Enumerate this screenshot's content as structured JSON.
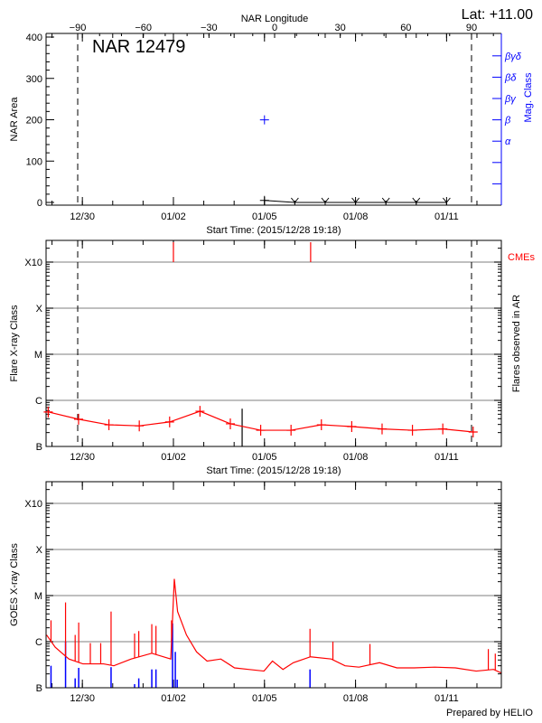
{
  "footer": "Prepared by HELIO",
  "colors": {
    "flare": "#ff0000",
    "mag_class": "#0000ff",
    "grid": "#999999",
    "goes_short": "#0000ff",
    "goes_long": "#ff0000",
    "axis": "#000000"
  },
  "chart_data": [
    {
      "type": "line",
      "panel": "nar",
      "title": "NAR 12479",
      "corner_text": "Lat: +11.00",
      "top_axis_label": "NAR Longitude",
      "top_ticks": [
        -90,
        -60,
        -30,
        0,
        30,
        60,
        90
      ],
      "top_ticks_labels": [
        "−90",
        "−60",
        "−30",
        "0",
        "30",
        "60",
        "90"
      ],
      "longitude_range": [
        -90,
        90
      ],
      "xlabel": "Start Time: (2015/12/28 19:18)",
      "xlim": [
        "2015/12/28 19:18",
        "2016/01/12 19:18"
      ],
      "x_tick_labels": [
        {
          "date": "2015/12/30 00:00",
          "label": "12/30"
        },
        {
          "date": "2016/01/02 00:00",
          "label": "01/02"
        },
        {
          "date": "2016/01/05 00:00",
          "label": "01/05"
        },
        {
          "date": "2016/01/08 00:00",
          "label": "01/08"
        },
        {
          "date": "2016/01/11 00:00",
          "label": "01/11"
        }
      ],
      "ylabel": "NAR Area",
      "ylim": [
        0,
        400
      ],
      "y_ticks": [
        0,
        100,
        200,
        300,
        400
      ],
      "y_ticks_labels": [
        "0",
        "100",
        "200",
        "300",
        "400"
      ],
      "y2label": "Mag. Class",
      "y2_classes": [
        "α",
        "β",
        "βγ",
        "βδ",
        "βγδ"
      ],
      "area_series": [
        {
          "t": "2016/01/05 00:00",
          "area": 5
        },
        {
          "t": "2016/01/06 00:00",
          "area": 0
        },
        {
          "t": "2016/01/07 00:00",
          "area": 0
        },
        {
          "t": "2016/01/08 00:00",
          "area": 0
        },
        {
          "t": "2016/01/09 00:00",
          "area": 0
        },
        {
          "t": "2016/01/10 00:00",
          "area": 0
        },
        {
          "t": "2016/01/11 00:00",
          "area": 0
        }
      ],
      "mag_class_series": [
        {
          "t": "2016/01/05 00:00",
          "class": "β"
        }
      ],
      "limb_markers_longitude": [
        -90,
        90
      ]
    },
    {
      "type": "line",
      "panel": "flares",
      "xlabel": "Start Time: (2015/12/28 19:18)",
      "ylabel": "Flare X-ray Class",
      "y2label": "Flares observed in AR",
      "cme_label": "CMEs",
      "y_scale": "log",
      "ylim": [
        1e-07,
        0.003
      ],
      "y_ticks": [
        1e-07,
        1e-06,
        1e-05,
        0.0001,
        0.001
      ],
      "y_ticks_labels": [
        "B",
        "C",
        "M",
        "X",
        "X10"
      ],
      "grid": true,
      "series": [
        {
          "t": "2015/12/28 21:00",
          "flux": 5.6e-07
        },
        {
          "t": "2015/12/29 21:00",
          "flux": 3.9e-07
        },
        {
          "t": "2015/12/30 21:00",
          "flux": 2.95e-07
        },
        {
          "t": "2015/12/31 21:00",
          "flux": 2.8e-07
        },
        {
          "t": "2016/01/01 21:00",
          "flux": 3.4e-07
        },
        {
          "t": "2016/01/02 21:00",
          "flux": 5.8e-07
        },
        {
          "t": "2016/01/03 21:00",
          "flux": 3.1e-07
        },
        {
          "t": "2016/01/04 21:00",
          "flux": 2.25e-07
        },
        {
          "t": "2016/01/05 21:00",
          "flux": 2.25e-07
        },
        {
          "t": "2016/01/06 21:00",
          "flux": 2.95e-07
        },
        {
          "t": "2016/01/07 21:00",
          "flux": 2.7e-07
        },
        {
          "t": "2016/01/08 21:00",
          "flux": 2.4e-07
        },
        {
          "t": "2016/01/09 21:00",
          "flux": 2.25e-07
        },
        {
          "t": "2016/01/10 21:00",
          "flux": 2.4e-07
        },
        {
          "t": "2016/01/11 21:00",
          "flux": 2.06e-07
        }
      ],
      "flare_events": [
        {
          "t": "2016/01/04 06:20",
          "flux": 6.6e-07
        }
      ],
      "cme_times": [
        "2016/01/02 00:00",
        "2016/01/06 12:30"
      ]
    },
    {
      "type": "line",
      "panel": "goes",
      "ylabel": "GOES X-ray Class",
      "y_scale": "log",
      "ylim": [
        1e-07,
        0.003
      ],
      "y_ticks": [
        1e-07,
        1e-06,
        1e-05,
        0.0001,
        0.001
      ],
      "y_ticks_labels": [
        "B",
        "C",
        "M",
        "X",
        "X10"
      ],
      "grid": true,
      "long_channel": [
        [
          "2015/12/28 19:42",
          1.4e-06
        ],
        [
          "2015/12/29 02:30",
          7.6e-07
        ],
        [
          "2015/12/29 08:00",
          5.6e-07
        ],
        [
          "2015/12/29 13:24",
          4.2e-07
        ],
        [
          "2015/12/30 00:24",
          3.3e-07
        ],
        [
          "2015/12/30 16:42",
          3.3e-07
        ],
        [
          "2015/12/31 00:54",
          3e-07
        ],
        [
          "2015/12/31 14:36",
          4.2e-07
        ],
        [
          "2016/01/01 06:54",
          5.6e-07
        ],
        [
          "2016/01/01 21:54",
          4.2e-07
        ],
        [
          "2016/01/02 00:42",
          2.3e-05
        ],
        [
          "2016/01/02 03:18",
          4.5e-06
        ],
        [
          "2016/01/02 10:18",
          1.4e-06
        ],
        [
          "2016/01/02 18:18",
          6e-07
        ],
        [
          "2016/01/03 02:36",
          3.8e-07
        ],
        [
          "2016/01/03 13:30",
          4.2e-07
        ],
        [
          "2016/01/04 00:18",
          2.7e-07
        ],
        [
          "2016/01/04 11:18",
          2.5e-07
        ],
        [
          "2016/01/04 23:36",
          2.3e-07
        ],
        [
          "2016/01/05 06:18",
          3.8e-07
        ],
        [
          "2016/01/05 14:36",
          2.5e-07
        ],
        [
          "2016/01/05 22:48",
          3.5e-07
        ],
        [
          "2016/01/06 12:24",
          4.7e-07
        ],
        [
          "2016/01/07 04:48",
          4.2e-07
        ],
        [
          "2016/01/07 15:42",
          3e-07
        ],
        [
          "2016/01/08 02:42",
          2.8e-07
        ],
        [
          "2016/01/08 19:00",
          3.5e-07
        ],
        [
          "2016/01/09 08:42",
          2.7e-07
        ],
        [
          "2016/01/09 22:18",
          2.7e-07
        ],
        [
          "2016/01/10 14:36",
          2.8e-07
        ],
        [
          "2016/01/11 07:00",
          2.7e-07
        ],
        [
          "2016/01/11 23:24",
          2.3e-07
        ],
        [
          "2016/01/12 13:06",
          2.5e-07
        ],
        [
          "2016/01/12 19:06",
          2.1e-07
        ]
      ],
      "long_channel_spikes": [
        [
          "2015/12/28 23:12",
          2.9e-06
        ],
        [
          "2015/12/29 10:42",
          7.1e-06
        ],
        [
          "2015/12/29 18:18",
          1.4e-06
        ],
        [
          "2015/12/29 21:06",
          2.6e-06
        ],
        [
          "2015/12/30 06:18",
          9.3e-07
        ],
        [
          "2015/12/30 14:30",
          9.3e-07
        ],
        [
          "2015/12/30 22:42",
          4.5e-06
        ],
        [
          "2015/12/31 17:18",
          1.5e-06
        ],
        [
          "2015/12/31 20:36",
          1.7e-06
        ],
        [
          "2016/01/01 06:54",
          2.4e-06
        ],
        [
          "2016/01/01 10:12",
          2.2e-06
        ],
        [
          "2016/01/01 22:30",
          2.9e-06
        ],
        [
          "2016/01/06 12:00",
          1.9e-06
        ],
        [
          "2016/01/07 06:06",
          1e-06
        ],
        [
          "2016/01/08 11:24",
          8.9e-07
        ],
        [
          "2016/01/12 09:00",
          6.9e-07
        ],
        [
          "2016/01/12 14:30",
          5.5e-07
        ]
      ],
      "short_channel_peaks": [
        [
          "2015/12/28 23:12",
          3e-07
        ],
        [
          "2015/12/29 10:42",
          1e-06
        ],
        [
          "2015/12/29 18:18",
          1.6e-07
        ],
        [
          "2015/12/29 21:06",
          2.7e-07
        ],
        [
          "2015/12/30 22:42",
          2.8e-07
        ],
        [
          "2015/12/31 17:18",
          1.2e-07
        ],
        [
          "2015/12/31 20:36",
          1.6e-07
        ],
        [
          "2016/01/01 06:54",
          2.5e-07
        ],
        [
          "2016/01/01 10:12",
          2.5e-07
        ],
        [
          "2016/01/01 23:18",
          2.5e-06
        ],
        [
          "2016/01/02 01:30",
          6e-07
        ],
        [
          "2016/01/02 03:00",
          1.5e-07
        ],
        [
          "2016/01/06 12:00",
          2.5e-07
        ]
      ]
    }
  ]
}
